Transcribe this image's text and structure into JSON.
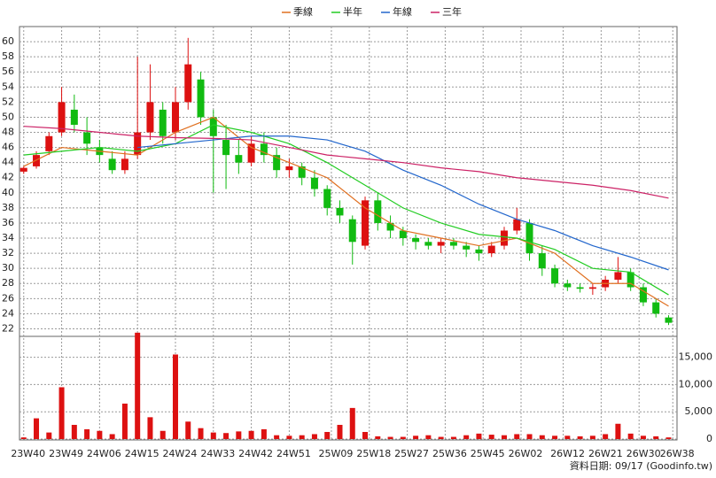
{
  "chart_data": {
    "type": "candlestick",
    "legend": [
      "季線",
      "半年",
      "年線",
      "三年"
    ],
    "x": [
      0,
      3,
      6,
      9,
      12,
      15,
      18,
      21,
      24,
      27,
      30,
      33,
      36,
      39,
      42,
      45,
      48,
      51,
      54,
      57,
      60,
      63,
      66,
      69,
      72,
      75,
      78,
      81,
      84,
      87,
      90,
      93,
      96,
      99,
      102,
      105,
      108,
      111,
      114,
      117,
      120,
      123,
      126,
      129,
      132,
      135,
      138,
      141,
      144,
      147,
      150,
      153
    ],
    "open": [
      42.8,
      43.5,
      45.5,
      48,
      51,
      48,
      46,
      44.5,
      43,
      45,
      48,
      51,
      48,
      52,
      55,
      50,
      47,
      45,
      44,
      46.5,
      45,
      43,
      43.5,
      42,
      40.5,
      38,
      36.5,
      33,
      39,
      36,
      35,
      34,
      33.5,
      33,
      33.5,
      33,
      32.5,
      32,
      33,
      35,
      36,
      32,
      30,
      28,
      27.5,
      27.3,
      27.5,
      28.5,
      29.5,
      27.5,
      25.5,
      23.5
    ],
    "high": [
      43.5,
      45.5,
      48,
      54,
      53,
      50,
      47,
      45.5,
      45.5,
      58,
      57,
      52,
      54,
      60.5,
      56,
      51,
      49,
      47,
      47.5,
      48,
      46,
      44.5,
      44,
      43,
      41,
      39,
      37,
      39.5,
      40,
      37,
      35.5,
      34.5,
      34,
      34,
      34,
      33.5,
      33,
      33.5,
      35.5,
      38,
      36.5,
      33,
      30.5,
      28.5,
      28,
      28,
      29,
      31.5,
      30,
      28,
      26,
      23.8
    ],
    "low": [
      42.5,
      43.2,
      45,
      47.5,
      48,
      45,
      44,
      42.5,
      42.5,
      44.5,
      47,
      46.5,
      47,
      51,
      49,
      40,
      40.5,
      42.5,
      43.5,
      44,
      42,
      42,
      41,
      39.5,
      37,
      36,
      30.5,
      32.5,
      35,
      34,
      33,
      32.5,
      32.5,
      32,
      32.5,
      31.5,
      31,
      31.5,
      32.5,
      34.5,
      31,
      29,
      27.5,
      27,
      26.8,
      26.5,
      27,
      28,
      27,
      25,
      23.5,
      22.5
    ],
    "close": [
      43.3,
      45,
      47.5,
      52,
      49,
      46.5,
      45,
      43,
      44.5,
      48,
      52,
      47.5,
      52,
      57,
      50,
      47.5,
      45,
      44,
      46.5,
      45,
      43,
      43.5,
      42,
      40.5,
      38,
      37,
      33.5,
      39,
      36,
      35,
      34,
      33.5,
      33,
      33.5,
      33,
      32.5,
      32,
      33,
      35,
      36.5,
      32,
      30,
      28,
      27.5,
      27.3,
      27.5,
      28.5,
      29.5,
      27.5,
      25.5,
      24,
      22.8
    ],
    "volume": [
      300,
      3800,
      1200,
      9500,
      2600,
      1800,
      1500,
      900,
      6500,
      19500,
      4000,
      1500,
      15500,
      3200,
      2000,
      1200,
      1100,
      1400,
      1500,
      1800,
      700,
      600,
      700,
      900,
      1300,
      2600,
      5700,
      1300,
      500,
      400,
      400,
      600,
      700,
      400,
      400,
      700,
      1000,
      800,
      700,
      900,
      900,
      700,
      600,
      600,
      500,
      600,
      900,
      2800,
      1000,
      600,
      500,
      300
    ],
    "up_color": "#dd1111",
    "down_color": "#11bb11",
    "volume_color": "#dd1111",
    "xlim": [
      -1,
      155
    ],
    "xticks": [
      {
        "value": 0,
        "label": "23W40"
      },
      {
        "value": 9,
        "label": "23W49"
      },
      {
        "value": 18,
        "label": "24W06"
      },
      {
        "value": 27,
        "label": "24W15"
      },
      {
        "value": 36,
        "label": "24W24"
      },
      {
        "value": 45,
        "label": "24W33"
      },
      {
        "value": 54,
        "label": "24W42"
      },
      {
        "value": 63,
        "label": "24W51"
      },
      {
        "value": 73,
        "label": "25W09"
      },
      {
        "value": 82,
        "label": "25W18"
      },
      {
        "value": 91,
        "label": "25W27"
      },
      {
        "value": 100,
        "label": "25W36"
      },
      {
        "value": 109,
        "label": "25W45"
      },
      {
        "value": 118,
        "label": "26W02"
      },
      {
        "value": 128,
        "label": "26W12"
      },
      {
        "value": 137,
        "label": "26W21"
      },
      {
        "value": 146,
        "label": "26W30"
      },
      {
        "value": 154,
        "label": "26W38"
      }
    ],
    "ylim": [
      21,
      62
    ],
    "yticks": [
      22,
      24,
      26,
      28,
      30,
      32,
      34,
      36,
      38,
      40,
      42,
      44,
      46,
      48,
      50,
      52,
      54,
      56,
      58,
      60
    ],
    "y2lim": [
      0,
      18500
    ],
    "y2ticks": [
      0,
      {
        "value": 5000,
        "label": "5,000"
      },
      {
        "value": 10000,
        "label": "10,000"
      },
      {
        "value": 15000,
        "label": "15,000"
      }
    ],
    "grid": true,
    "series": [
      {
        "name": "季線",
        "color": "#e07020",
        "x": [
          0,
          9,
          18,
          27,
          36,
          45,
          54,
          63,
          72,
          81,
          90,
          99,
          108,
          117,
          126,
          135,
          144,
          153
        ],
        "values": [
          43.5,
          46,
          45.5,
          45,
          48,
          50,
          46,
          44,
          42,
          38,
          35,
          34,
          33,
          34,
          32,
          28,
          28,
          25
        ]
      },
      {
        "name": "半年",
        "color": "#22cc22",
        "x": [
          0,
          9,
          18,
          27,
          36,
          45,
          54,
          63,
          72,
          81,
          90,
          99,
          108,
          117,
          126,
          135,
          144,
          153
        ],
        "values": [
          45,
          45.5,
          46,
          45.5,
          46.5,
          49,
          48,
          46.5,
          44,
          41,
          38,
          36,
          34.5,
          34,
          32.5,
          30,
          29.5,
          26.5
        ]
      },
      {
        "name": "年線",
        "color": "#2266cc",
        "x": [
          0,
          9,
          18,
          27,
          36,
          45,
          54,
          63,
          72,
          81,
          90,
          99,
          108,
          117,
          126,
          135,
          144,
          153
        ],
        "values": [
          null,
          null,
          null,
          46,
          46.5,
          47,
          47.5,
          47.5,
          47,
          45.5,
          43,
          41,
          38.5,
          36.5,
          35,
          33,
          31.5,
          29.8
        ]
      },
      {
        "name": "三年",
        "color": "#cc2266",
        "x": [
          0,
          9,
          18,
          27,
          36,
          45,
          54,
          63,
          72,
          81,
          90,
          99,
          108,
          117,
          126,
          135,
          144,
          153
        ],
        "values": [
          48.8,
          48.5,
          48,
          47.5,
          47.3,
          47.2,
          47,
          46,
          45,
          44.5,
          44,
          43.3,
          42.8,
          42,
          41.5,
          41,
          40.3,
          39.3
        ]
      }
    ],
    "footer": "資料日期: 09/17 (Goodinfo.tw)"
  }
}
